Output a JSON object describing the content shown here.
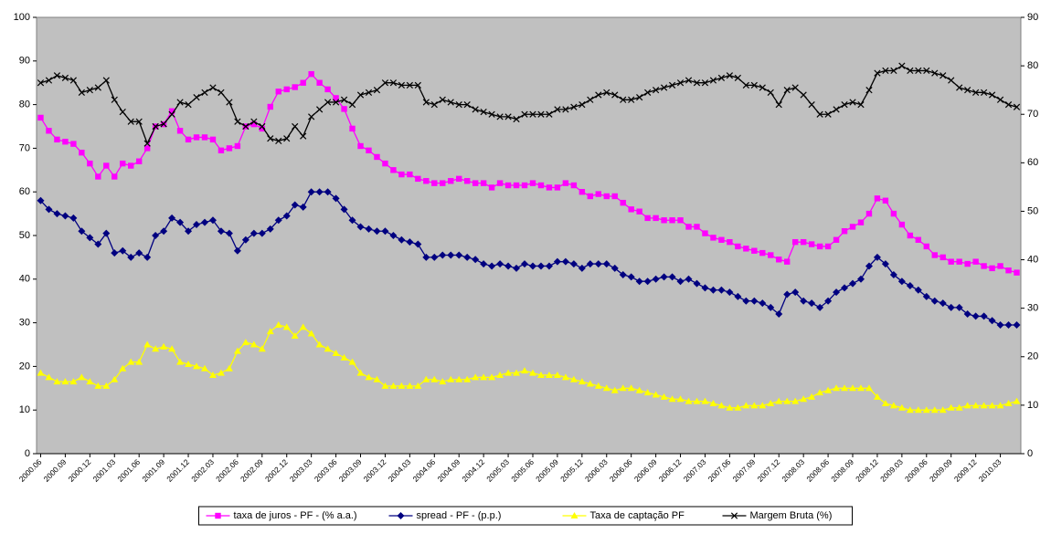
{
  "chart_data": {
    "type": "line",
    "categories": [
      "2000.06",
      null,
      null,
      "2000.09",
      null,
      null,
      "2000.12",
      null,
      null,
      "2001.03",
      null,
      null,
      "2001.06",
      null,
      null,
      "2001.09",
      null,
      null,
      "2001.12",
      null,
      null,
      "2002.03",
      null,
      null,
      "2002.06",
      null,
      null,
      "2002.09",
      null,
      null,
      "2002.12",
      null,
      null,
      "2003.03",
      null,
      null,
      "2003.06",
      null,
      null,
      "2003.09",
      null,
      null,
      "2003.12",
      null,
      null,
      "2004.03",
      null,
      null,
      "2004.06",
      null,
      null,
      "2004.09",
      null,
      null,
      "2004.12",
      null,
      null,
      "2005.03",
      null,
      null,
      "2005.06",
      null,
      null,
      "2005.09",
      null,
      null,
      "2005.12",
      null,
      null,
      "2006.03",
      null,
      null,
      "2006.06",
      null,
      null,
      "2006.09",
      null,
      null,
      "2006.12",
      null,
      null,
      "2007.03",
      null,
      null,
      "2007.06",
      null,
      null,
      "2007.09",
      null,
      null,
      "2007.12",
      null,
      null,
      "2008.03",
      null,
      null,
      "2008.06",
      null,
      null,
      "2008.09",
      null,
      null,
      "2008.12",
      null,
      null,
      "2009.03",
      null,
      null,
      "2009.06",
      null,
      null,
      "2009.09",
      null,
      null,
      "2009.12",
      null,
      null,
      "2010.03",
      null,
      null
    ],
    "series": [
      {
        "name": "taxa de juros - PF - (% a.a.)",
        "color": "#ff00ff",
        "marker": "square",
        "values": [
          77,
          74,
          72,
          71.5,
          71,
          69,
          66.5,
          63.5,
          66,
          63.5,
          66.5,
          66,
          67,
          70,
          75,
          75.5,
          78.5,
          74,
          72,
          72.5,
          72.5,
          72,
          69.5,
          70,
          70.5,
          75,
          75.5,
          74.5,
          79.5,
          83,
          83.5,
          84,
          85,
          87,
          85,
          83.5,
          81.5,
          79,
          74.5,
          70.5,
          69.5,
          68,
          66.5,
          65,
          64,
          64,
          63,
          62.5,
          62,
          62,
          62.5,
          63,
          62.5,
          62,
          62,
          61,
          62,
          61.5,
          61.5,
          61.5,
          62,
          61.5,
          61,
          61,
          62,
          61.5,
          60,
          59,
          59.5,
          59,
          59,
          57.5,
          56,
          55.5,
          54,
          54,
          53.5,
          53.5,
          53.5,
          52,
          52,
          50.5,
          49.5,
          49,
          48.5,
          47.5,
          47,
          46.5,
          46,
          45.5,
          44.5,
          44,
          48.5,
          48.5,
          48,
          47.5,
          47.5,
          49,
          51,
          52,
          53,
          55,
          58.5,
          58,
          55,
          52.5,
          50,
          49,
          47.5,
          45.5,
          45,
          44,
          44,
          43.5,
          44,
          43,
          42.5,
          43,
          42,
          41.5
        ]
      },
      {
        "name": "spread - PF - (p.p.)",
        "color": "#000080",
        "marker": "diamond",
        "values": [
          58,
          56,
          55,
          54.5,
          54,
          51,
          49.5,
          48,
          50.5,
          46,
          46.5,
          45,
          46,
          45,
          50,
          51,
          54,
          53,
          51,
          52.5,
          53,
          53.5,
          51,
          50.5,
          46.5,
          49,
          50.5,
          50.5,
          51.5,
          53.5,
          54.5,
          57,
          56.5,
          60,
          60,
          60,
          58.5,
          56,
          53.5,
          52,
          51.5,
          51,
          51,
          50,
          49,
          48.5,
          48,
          45,
          45,
          45.5,
          45.5,
          45.5,
          45,
          44.5,
          43.5,
          43,
          43.5,
          43,
          42.5,
          43.5,
          43,
          43,
          43,
          44,
          44,
          43.5,
          42.5,
          43.5,
          43.5,
          43.5,
          42.5,
          41,
          40.5,
          39.5,
          39.5,
          40,
          40.5,
          40.5,
          39.5,
          40,
          39,
          38,
          37.5,
          37.5,
          37,
          36,
          35,
          35,
          34.5,
          33.5,
          32,
          36.5,
          37,
          35,
          34.5,
          33.5,
          35,
          37,
          38,
          39,
          40,
          43,
          45,
          43.5,
          41,
          39.5,
          38.5,
          37.5,
          36,
          35,
          34.5,
          33.5,
          33.5,
          32,
          31.5,
          31.5,
          30.5,
          29.5,
          29.5,
          29.5
        ]
      },
      {
        "name": "Taxa de captação PF",
        "color": "#ffff00",
        "marker": "triangle",
        "values": [
          18.5,
          17.5,
          16.5,
          16.5,
          16.5,
          17.5,
          16.5,
          15.5,
          15.5,
          17,
          19.5,
          21,
          21,
          25,
          24,
          24.5,
          24,
          21,
          20.5,
          20,
          19.5,
          18,
          18.5,
          19.5,
          23.5,
          25.5,
          25,
          24,
          28,
          29.5,
          29,
          27,
          29,
          27.5,
          25,
          24,
          23,
          22,
          21,
          18.5,
          17.5,
          17,
          15.5,
          15.5,
          15.5,
          15.5,
          15.5,
          17,
          17,
          16.5,
          17,
          17,
          17,
          17.5,
          17.5,
          17.5,
          18,
          18.5,
          18.5,
          19,
          18.5,
          18,
          18,
          18,
          17.5,
          17,
          16.5,
          16,
          15.5,
          15,
          14.5,
          15,
          15,
          14.5,
          14,
          13.5,
          13,
          12.5,
          12.5,
          12,
          12,
          12,
          11.5,
          11,
          10.5,
          10.5,
          11,
          11,
          11,
          11.5,
          12,
          12,
          12,
          12.5,
          13,
          14,
          14.5,
          15,
          15,
          15,
          15,
          15,
          13,
          11.5,
          11,
          10.5,
          10,
          10,
          10,
          10,
          10,
          10.5,
          10.5,
          11,
          11,
          11,
          11,
          11,
          11.5,
          12
        ]
      },
      {
        "name": "Margem Bruta (%)",
        "color": "#000000",
        "marker": "cross",
        "axis": "y2",
        "values": [
          76.5,
          77,
          78,
          77.5,
          77,
          74.5,
          75,
          75.5,
          77,
          73,
          70.5,
          68.5,
          68.5,
          64,
          67.5,
          68,
          70,
          72.5,
          72,
          73.5,
          74.5,
          75.5,
          74.5,
          72.5,
          68.5,
          67.5,
          68.5,
          67.5,
          65,
          64.5,
          65,
          67.5,
          65.5,
          69.5,
          71,
          72.5,
          72.5,
          73,
          72,
          74,
          74.5,
          75,
          76.5,
          76.5,
          76,
          76,
          76,
          72.5,
          72,
          73,
          72.5,
          72,
          72,
          71,
          70.5,
          70,
          69.5,
          69.5,
          69,
          70,
          70,
          70,
          70,
          71,
          71,
          71.5,
          72,
          73,
          74,
          74.5,
          74,
          73,
          73,
          73.5,
          74.5,
          75,
          75.5,
          76,
          76.5,
          77,
          76.5,
          76.5,
          77,
          77.5,
          78,
          77.5,
          76,
          76,
          75.5,
          74.5,
          72,
          75,
          75.5,
          74,
          72,
          70,
          70,
          71,
          72,
          72.5,
          72,
          75,
          78.5,
          79,
          79,
          80,
          79,
          79,
          79,
          78.5,
          78,
          77,
          75.5,
          75,
          74.5,
          74.5,
          74,
          73,
          72,
          71.5
        ]
      }
    ],
    "ylim": [
      0,
      100
    ],
    "yticks": [
      0,
      10,
      20,
      30,
      40,
      50,
      60,
      70,
      80,
      90,
      100
    ],
    "y2lim": [
      0,
      90
    ],
    "y2ticks": [
      0,
      10,
      20,
      30,
      40,
      50,
      60,
      70,
      80,
      90
    ],
    "legend": "bottom",
    "background": "#c0c0c0"
  }
}
